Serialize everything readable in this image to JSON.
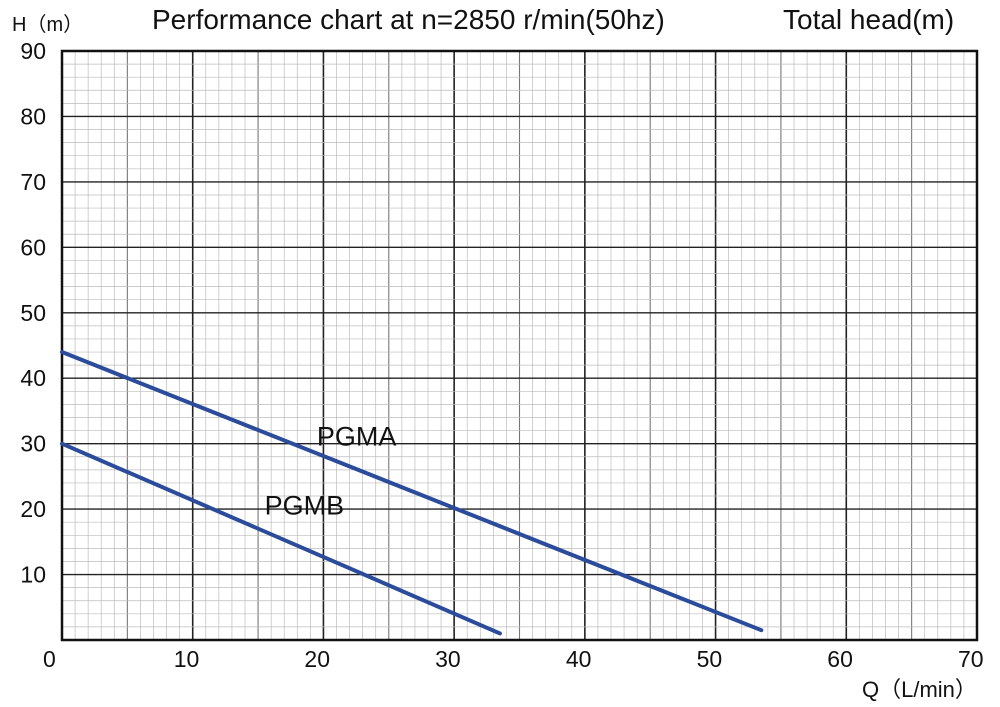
{
  "chart_data": {
    "type": "line",
    "title": "Performance chart at n=2850 r/min(50hz)",
    "ylabel": "H（m）",
    "y_unit_label": "Total head(m)",
    "xlabel": "Q（L/min）",
    "xlim": [
      0,
      70
    ],
    "ylim": [
      0,
      90
    ],
    "x_ticks": [
      "0",
      "10",
      "20",
      "30",
      "40",
      "50",
      "60",
      "70"
    ],
    "y_ticks": [
      "10",
      "20",
      "30",
      "40",
      "50",
      "60",
      "70",
      "80",
      "90"
    ],
    "grid": true,
    "series": [
      {
        "name": "PGMA",
        "color": "#2b4b9b",
        "points": [
          [
            0,
            44
          ],
          [
            53.5,
            1.5
          ]
        ]
      },
      {
        "name": "PGMB",
        "color": "#2b4b9b",
        "points": [
          [
            0,
            30
          ],
          [
            33.5,
            1
          ]
        ]
      }
    ]
  }
}
